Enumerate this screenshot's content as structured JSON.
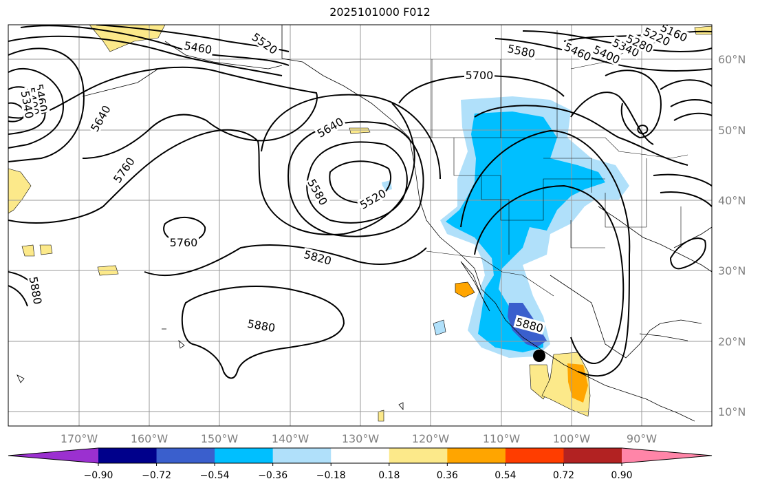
{
  "title": "2025101000 F012",
  "map": {
    "lon_labels": [
      "170°W",
      "160°W",
      "150°W",
      "140°W",
      "130°W",
      "120°W",
      "110°W",
      "100°W",
      "90°W"
    ],
    "lat_labels": [
      "60°N",
      "50°N",
      "40°N",
      "30°N",
      "20°N",
      "10°N"
    ],
    "contour_labels": [
      "5460",
      "5520",
      "5580",
      "5460",
      "5400",
      "5340",
      "5280",
      "5220",
      "5160",
      "5700",
      "5640",
      "5460",
      "5400",
      "5340",
      "5640",
      "5760",
      "5580",
      "5520",
      "5760",
      "5820",
      "5880",
      "5880",
      "5880"
    ],
    "colors": {
      "land_line": "#000000",
      "grid": "#999999",
      "tick_label": "#808080"
    }
  },
  "colorbar": {
    "tick_labels": [
      "−0.90",
      "−0.72",
      "−0.54",
      "−0.36",
      "−0.18",
      "0.18",
      "0.36",
      "0.54",
      "0.72",
      "0.90"
    ],
    "colors": [
      "#9b30d0",
      "#00008b",
      "#3a5fcd",
      "#00bfff",
      "#b0e0fa",
      "#ffffff",
      "#fce98a",
      "#ffa500",
      "#ff3d00",
      "#b22222",
      "#ff85a8"
    ]
  }
}
